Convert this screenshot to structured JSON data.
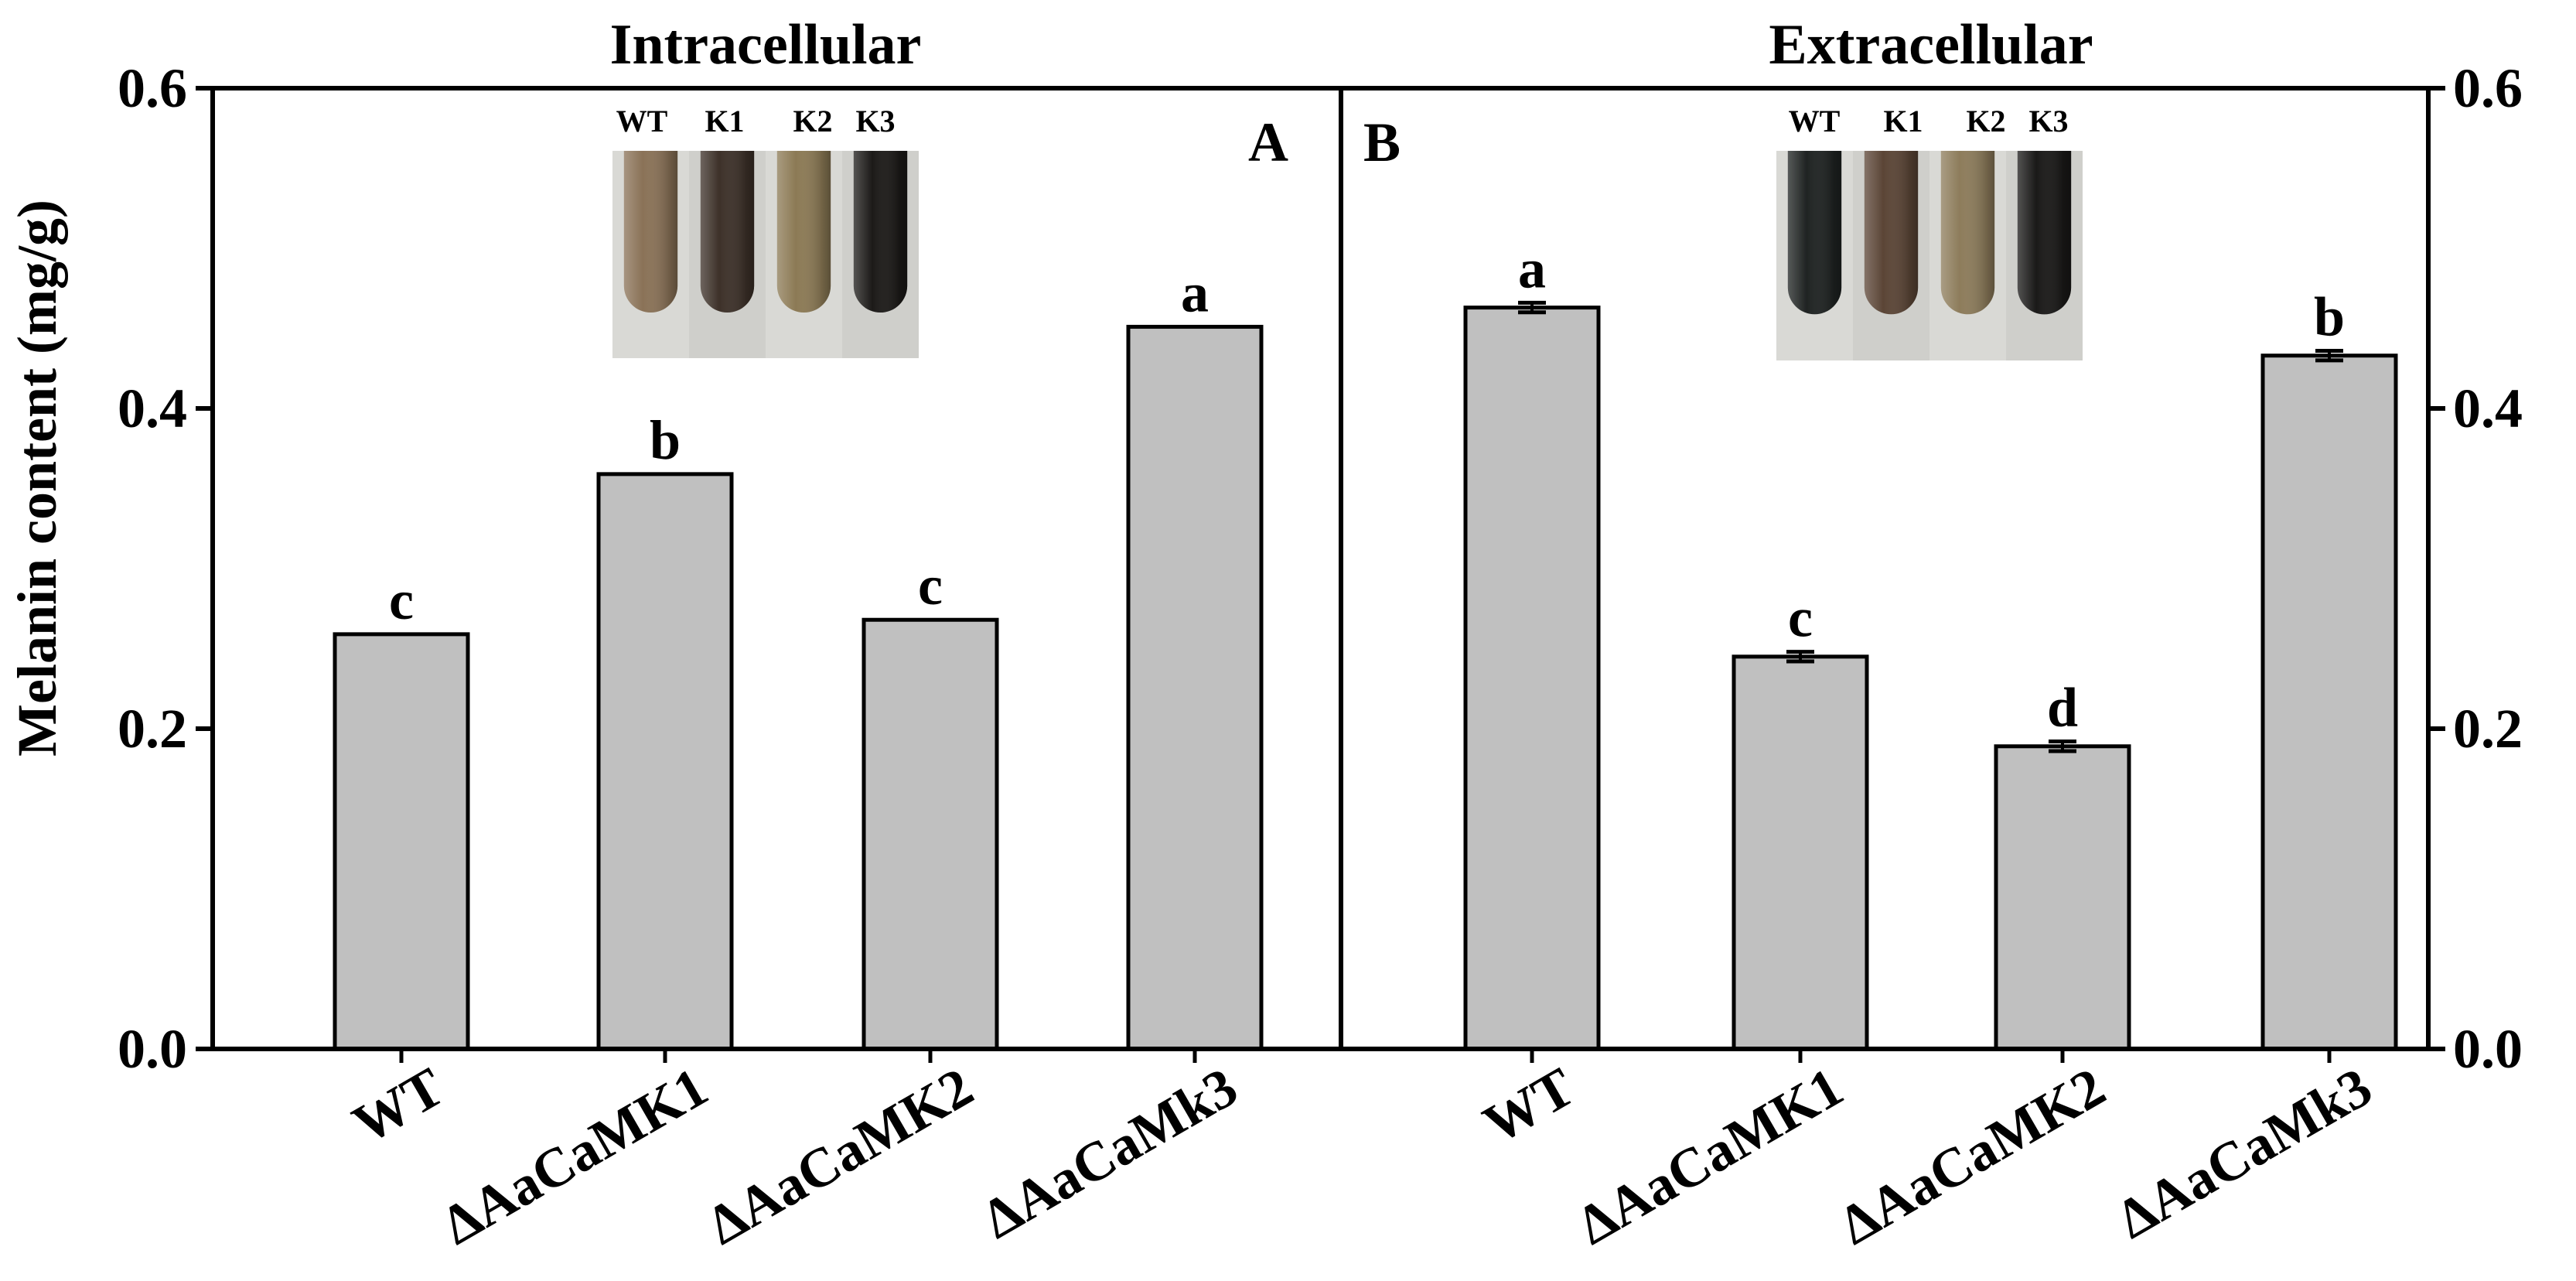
{
  "chart_data": {
    "type": "bar",
    "ylabel": "Melanin content (mg/g)",
    "ylim": [
      0,
      0.6
    ],
    "yticks": [
      "0.0",
      "0.2",
      "0.4",
      "0.6"
    ],
    "grid": false,
    "colors": {
      "bar_fill": "#c0c0c0",
      "bar_stroke": "#000000"
    },
    "panels": [
      {
        "title": "Intracellular",
        "letter": "A",
        "categories": [
          "WT",
          "ΔAaCaMK1",
          "ΔAaCaMK2",
          "ΔAaCaMk3"
        ],
        "values": [
          0.259,
          0.359,
          0.268,
          0.451
        ],
        "errors": [
          0,
          0,
          0,
          0
        ],
        "sig": [
          "c",
          "b",
          "c",
          "a"
        ],
        "inset_labels": [
          "WT",
          "K1",
          "K2",
          "K3"
        ],
        "inset_colors": [
          "#8a7257",
          "#3d3129",
          "#8c7a55",
          "#1c1a18"
        ]
      },
      {
        "title": "Extracellular",
        "letter": "B",
        "categories": [
          "WT",
          "ΔAaCaMK1",
          "ΔAaCaMK2",
          "ΔAaCaMk3"
        ],
        "values": [
          0.463,
          0.245,
          0.189,
          0.433
        ],
        "errors": [
          0.003,
          0.003,
          0.003,
          0.003
        ],
        "sig": [
          "a",
          "c",
          "d",
          "b"
        ],
        "inset_labels": [
          "WT",
          "K1",
          "K2",
          "K3"
        ],
        "inset_colors": [
          "#1f2322",
          "#5b4536",
          "#8d7c5b",
          "#1a1918"
        ]
      }
    ]
  }
}
